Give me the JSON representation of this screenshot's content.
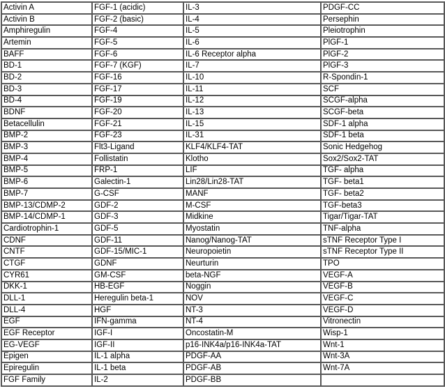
{
  "page": {
    "background_color": "#ffffff",
    "text_color": "#000000",
    "border_color": "#575757"
  },
  "table": {
    "name": "growth-factor-product-list",
    "column_count": 4,
    "row_count": 33,
    "rows": [
      [
        "Activin A",
        "FGF-1 (acidic)",
        "IL-3",
        "PDGF-CC"
      ],
      [
        "Activin B",
        "FGF-2 (basic)",
        "IL-4",
        "Persephin"
      ],
      [
        "Amphiregulin",
        "FGF-4",
        "IL-5",
        "Pleiotrophin"
      ],
      [
        "Artemin",
        "FGF-5",
        "IL-6",
        "PlGF-1"
      ],
      [
        "BAFF",
        "FGF-6",
        "IL-6 Receptor alpha",
        "PlGF-2"
      ],
      [
        "BD-1",
        "FGF-7 (KGF)",
        "IL-7",
        "PlGF-3"
      ],
      [
        "BD-2",
        "FGF-16",
        "IL-10",
        "R-Spondin-1"
      ],
      [
        "BD-3",
        "FGF-17",
        "IL-11",
        "SCF"
      ],
      [
        "BD-4",
        "FGF-19",
        "IL-12",
        "SCGF-alpha"
      ],
      [
        "BDNF",
        "FGF-20",
        "IL-13",
        "SCGF-beta"
      ],
      [
        "Betacellulin",
        "FGF-21",
        "IL-15",
        "SDF-1 alpha"
      ],
      [
        "BMP-2",
        "FGF-23",
        "IL-31",
        "SDF-1 beta"
      ],
      [
        "BMP-3",
        "Flt3-Ligand",
        "KLF4/KLF4-TAT",
        "Sonic Hedgehog"
      ],
      [
        "BMP-4",
        "Follistatin",
        "Klotho",
        "Sox2/Sox2-TAT"
      ],
      [
        "BMP-5",
        "FRP-1",
        "LIF",
        "TGF- alpha"
      ],
      [
        "BMP-6",
        "Galectin-1",
        "Lin28/Lin28-TAT",
        "TGF- beta1"
      ],
      [
        "BMP-7",
        "G-CSF",
        "MANF",
        "TGF- beta2"
      ],
      [
        "BMP-13/CDMP-2",
        "GDF-2",
        "M-CSF",
        "TGF-beta3"
      ],
      [
        "BMP-14/CDMP-1",
        "GDF-3",
        "Midkine",
        "Tigar/Tigar-TAT"
      ],
      [
        "Cardiotrophin-1",
        "GDF-5",
        "Myostatin",
        "TNF-alpha"
      ],
      [
        "CDNF",
        "GDF-11",
        "Nanog/Nanog-TAT",
        "sTNF Receptor Type I"
      ],
      [
        "CNTF",
        "GDF-15/MIC-1",
        "Neuropoietin",
        "sTNF Receptor Type II"
      ],
      [
        "CTGF",
        "GDNF",
        "Neurturin",
        "TPO"
      ],
      [
        "CYR61",
        "GM-CSF",
        "beta-NGF",
        "VEGF-A"
      ],
      [
        "DKK-1",
        "HB-EGF",
        "Noggin",
        "VEGF-B"
      ],
      [
        "DLL-1",
        "Heregulin beta-1",
        "NOV",
        "VEGF-C"
      ],
      [
        "DLL-4",
        "HGF",
        "NT-3",
        "VEGF-D"
      ],
      [
        "EGF",
        "IFN-gamma",
        "NT-4",
        "Vitronectin"
      ],
      [
        "EGF Receptor",
        "IGF-I",
        "Oncostatin-M",
        "Wisp-1"
      ],
      [
        "EG-VEGF",
        "IGF-II",
        "p16-INK4a/p16-INK4a-TAT",
        "Wnt-1"
      ],
      [
        "Epigen",
        "IL-1 alpha",
        "PDGF-AA",
        "Wnt-3A"
      ],
      [
        "Epiregulin",
        "IL-1 beta",
        "PDGF-AB",
        "Wnt-7A"
      ],
      [
        "FGF Family",
        "IL-2",
        "PDGF-BB",
        ""
      ]
    ]
  }
}
